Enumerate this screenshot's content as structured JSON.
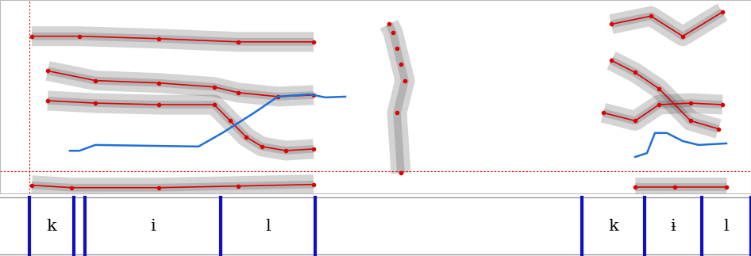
{
  "chart_data": {
    "type": "spectrogram",
    "tick_labels": false,
    "xlim": [
      0,
      0.946
    ],
    "ylim": [
      0,
      5000
    ],
    "y2lim": [
      0,
      500
    ],
    "series": [
      {
        "color": "#e00000",
        "marker": "dot",
        "line_style": "solid",
        "x": [
          0.04,
          0.09,
          0.2,
          0.3,
          0.395
        ],
        "values": [
          208,
          146,
          146,
          187,
          229
        ]
      },
      {
        "color": "#e00000",
        "marker": "dot",
        "line_style": "solid",
        "x": [
          0.06,
          0.12,
          0.2,
          0.27,
          0.29,
          0.31,
          0.33,
          0.36,
          0.395
        ],
        "values": [
          2396,
          2333,
          2292,
          2292,
          1875,
          1458,
          1208,
          1104,
          1146
        ]
      },
      {
        "color": "#e00000",
        "marker": "dot",
        "line_style": "solid",
        "x": [
          0.06,
          0.12,
          0.2,
          0.27,
          0.3,
          0.35,
          0.395
        ],
        "values": [
          3167,
          2917,
          2854,
          2750,
          2604,
          2500,
          2542
        ]
      },
      {
        "color": "#e00000",
        "marker": "dot",
        "line_style": "solid",
        "x": [
          0.04,
          0.1,
          0.2,
          0.3,
          0.395
        ],
        "values": [
          4063,
          4063,
          4000,
          3917,
          3917
        ]
      },
      {
        "color": "#e00000",
        "marker": "dot",
        "line_style": "none",
        "x": [
          0.49,
          0.495,
          0.5,
          0.505,
          0.51,
          0.5,
          0.505
        ],
        "values": [
          4375,
          4167,
          3750,
          3333,
          2917,
          2083,
          521
        ]
      },
      {
        "color": "#e00000",
        "marker": "dot",
        "line_style": "solid",
        "x": [
          0.8,
          0.85,
          0.915
        ],
        "values": [
          167,
          167,
          167
        ]
      },
      {
        "color": "#e00000",
        "marker": "dot",
        "line_style": "solid",
        "x": [
          0.76,
          0.8,
          0.83,
          0.87,
          0.91
        ],
        "values": [
          2083,
          1875,
          2292,
          2333,
          2292
        ]
      },
      {
        "color": "#e00000",
        "marker": "dot",
        "line_style": "solid",
        "x": [
          0.77,
          0.8,
          0.83,
          0.87,
          0.905
        ],
        "values": [
          3438,
          3125,
          2708,
          1875,
          1667
        ]
      },
      {
        "color": "#e00000",
        "marker": "dot",
        "line_style": "solid",
        "x": [
          0.77,
          0.82,
          0.86,
          0.91
        ],
        "values": [
          4375,
          4583,
          4063,
          4688
        ]
      },
      {
        "color": "#1f6fd6",
        "axis": "y2",
        "line_style": "solid",
        "x": [
          0.088,
          0.1,
          0.12,
          0.25,
          0.28,
          0.32,
          0.35,
          0.39,
          0.41,
          0.435
        ],
        "values": [
          110,
          110,
          125,
          121,
          156,
          208,
          250,
          256,
          248,
          250
        ]
      },
      {
        "color": "#1f6fd6",
        "axis": "y2",
        "line_style": "solid",
        "x": [
          0.8,
          0.815,
          0.825,
          0.84,
          0.86,
          0.88,
          0.915
        ],
        "values": [
          94,
          104,
          156,
          156,
          135,
          125,
          129
        ]
      }
    ],
    "cursor": {
      "time": 0.037,
      "frequency": 563
    },
    "segments": [
      {
        "label": "k",
        "start": 0.037,
        "end": 0.093
      },
      {
        "label": "i",
        "start": 0.107,
        "end": 0.278
      },
      {
        "label": "l",
        "start": 0.278,
        "end": 0.397
      },
      {
        "label": "k",
        "start": 0.733,
        "end": 0.812
      },
      {
        "label": "ɨ",
        "start": 0.812,
        "end": 0.884
      },
      {
        "label": "l",
        "start": 0.884,
        "end": 0.946
      }
    ]
  }
}
